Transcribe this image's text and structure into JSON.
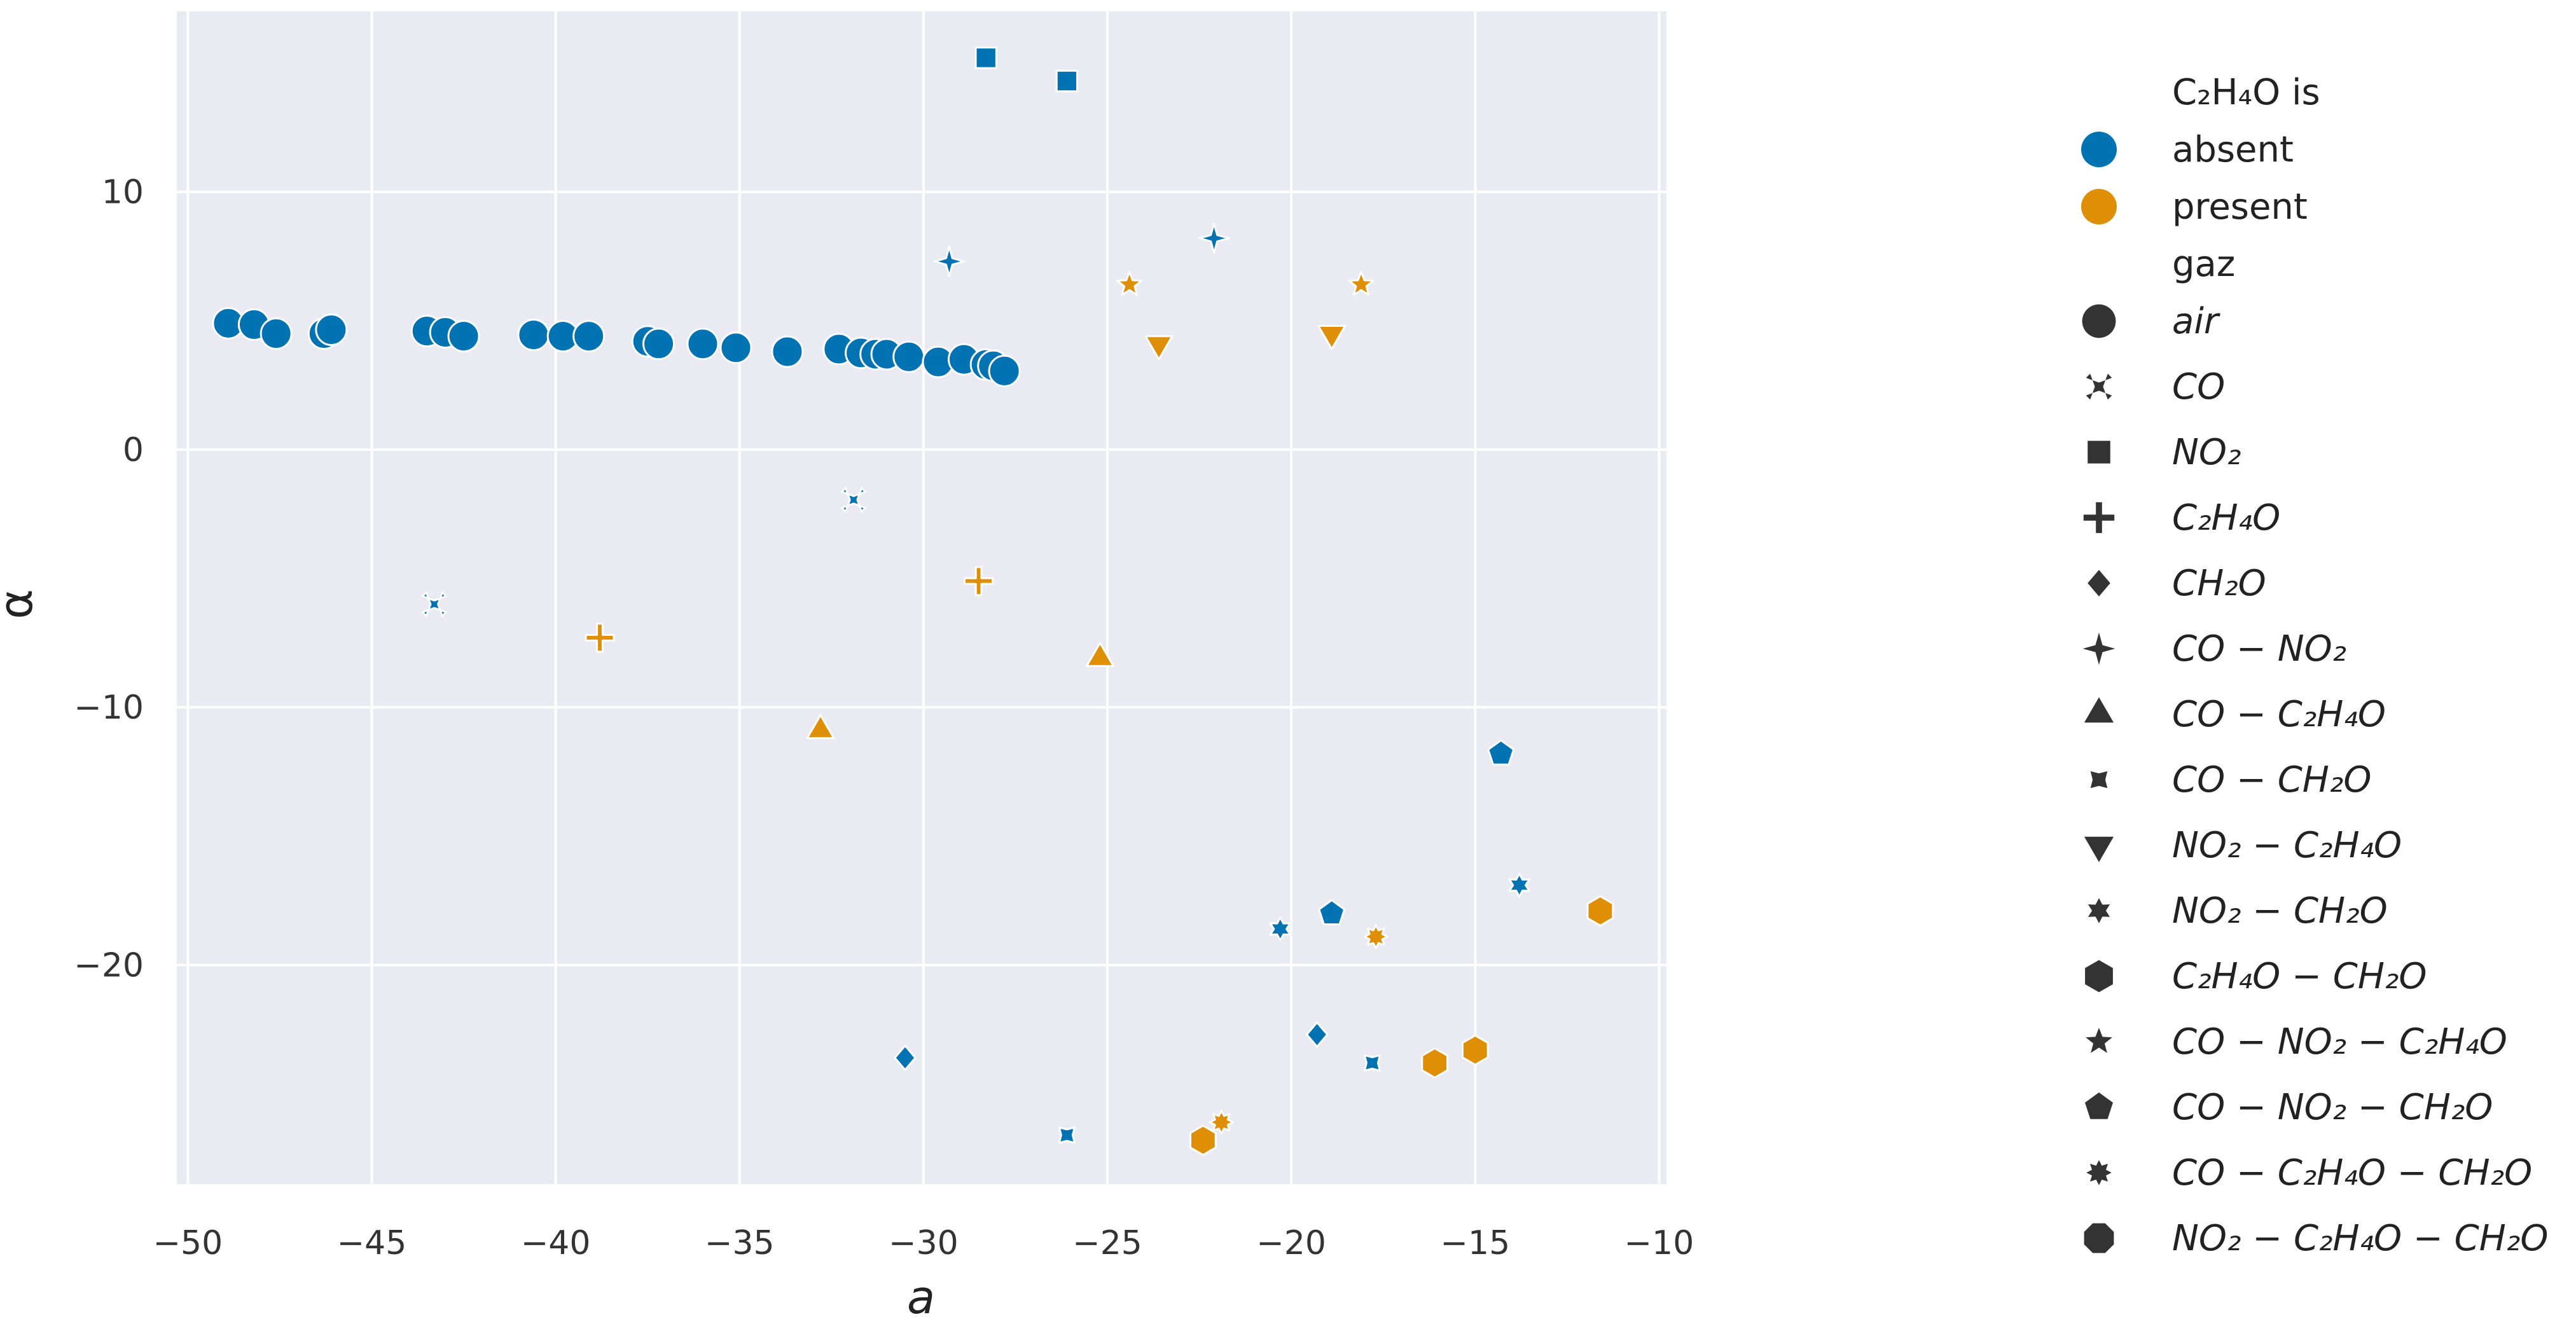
{
  "chart_data": {
    "type": "scatter",
    "xlabel": "a",
    "ylabel": "α",
    "xlim": [
      -50.3,
      -9.8
    ],
    "ylim": [
      -28.5,
      17.0
    ],
    "xticks": [
      -50,
      -45,
      -40,
      -35,
      -30,
      -25,
      -20,
      -15,
      -10
    ],
    "yticks": [
      -20,
      -10,
      0,
      10
    ],
    "xtick_labels": [
      "−50",
      "−45",
      "−40",
      "−35",
      "−30",
      "−25",
      "−20",
      "−15",
      "−10"
    ],
    "ytick_labels": [
      "−20",
      "−10",
      "0",
      "10"
    ],
    "grid": true,
    "legend_placement": "outside right",
    "colors": {
      "background": "#eaeaf2",
      "grid": "#ffffff",
      "absent": "#0173b2",
      "present": "#de8f05",
      "legend_marker": "#333333"
    },
    "legend": {
      "hue_title": "C₂H₄O is",
      "hue": [
        {
          "label": "absent",
          "value": "absent"
        },
        {
          "label": "present",
          "value": "present"
        }
      ],
      "style_title": "gaz",
      "styles": [
        {
          "label": "air",
          "marker": "circle"
        },
        {
          "label": "CO",
          "marker": "x"
        },
        {
          "label": "NO₂",
          "marker": "square"
        },
        {
          "label": "C₂H₄O",
          "marker": "plus"
        },
        {
          "label": "CH₂O",
          "marker": "diamond"
        },
        {
          "label": "CO − NO₂",
          "marker": "star4"
        },
        {
          "label": "CO − C₂H₄O",
          "marker": "triangle-up"
        },
        {
          "label": "CO − CH₂O",
          "marker": "star4-concave"
        },
        {
          "label": "NO₂ − C₂H₄O",
          "marker": "triangle-down"
        },
        {
          "label": "NO₂ − CH₂O",
          "marker": "star6"
        },
        {
          "label": "C₂H₄O − CH₂O",
          "marker": "hexagon"
        },
        {
          "label": "CO − NO₂ − C₂H₄O",
          "marker": "star5"
        },
        {
          "label": "CO − NO₂ − CH₂O",
          "marker": "pentagon"
        },
        {
          "label": "CO − C₂H₄O − CH₂O",
          "marker": "star8"
        },
        {
          "label": "NO₂ − C₂H₄O − CH₂O",
          "marker": "octagon"
        }
      ]
    },
    "points": [
      {
        "x": -48.9,
        "y": 4.9,
        "hue": "absent",
        "gaz": "air"
      },
      {
        "x": -48.2,
        "y": 4.85,
        "hue": "absent",
        "gaz": "air"
      },
      {
        "x": -47.6,
        "y": 4.5,
        "hue": "absent",
        "gaz": "air"
      },
      {
        "x": -46.3,
        "y": 4.5,
        "hue": "absent",
        "gaz": "air"
      },
      {
        "x": -46.1,
        "y": 4.65,
        "hue": "absent",
        "gaz": "air"
      },
      {
        "x": -43.5,
        "y": 4.6,
        "hue": "absent",
        "gaz": "air"
      },
      {
        "x": -43.0,
        "y": 4.55,
        "hue": "absent",
        "gaz": "air"
      },
      {
        "x": -42.5,
        "y": 4.4,
        "hue": "absent",
        "gaz": "air"
      },
      {
        "x": -40.6,
        "y": 4.45,
        "hue": "absent",
        "gaz": "air"
      },
      {
        "x": -39.8,
        "y": 4.4,
        "hue": "absent",
        "gaz": "air"
      },
      {
        "x": -39.1,
        "y": 4.4,
        "hue": "absent",
        "gaz": "air"
      },
      {
        "x": -37.5,
        "y": 4.2,
        "hue": "absent",
        "gaz": "air"
      },
      {
        "x": -37.2,
        "y": 4.1,
        "hue": "absent",
        "gaz": "air"
      },
      {
        "x": -36.0,
        "y": 4.1,
        "hue": "absent",
        "gaz": "air"
      },
      {
        "x": -35.1,
        "y": 3.95,
        "hue": "absent",
        "gaz": "air"
      },
      {
        "x": -33.7,
        "y": 3.8,
        "hue": "absent",
        "gaz": "air"
      },
      {
        "x": -32.3,
        "y": 3.9,
        "hue": "absent",
        "gaz": "air"
      },
      {
        "x": -31.7,
        "y": 3.75,
        "hue": "absent",
        "gaz": "air"
      },
      {
        "x": -31.3,
        "y": 3.7,
        "hue": "absent",
        "gaz": "air"
      },
      {
        "x": -31.0,
        "y": 3.7,
        "hue": "absent",
        "gaz": "air"
      },
      {
        "x": -30.4,
        "y": 3.6,
        "hue": "absent",
        "gaz": "air"
      },
      {
        "x": -29.6,
        "y": 3.4,
        "hue": "absent",
        "gaz": "air"
      },
      {
        "x": -28.9,
        "y": 3.5,
        "hue": "absent",
        "gaz": "air"
      },
      {
        "x": -28.3,
        "y": 3.3,
        "hue": "absent",
        "gaz": "air"
      },
      {
        "x": -28.1,
        "y": 3.25,
        "hue": "absent",
        "gaz": "air"
      },
      {
        "x": -27.8,
        "y": 3.05,
        "hue": "absent",
        "gaz": "air"
      },
      {
        "x": -43.3,
        "y": -6.0,
        "hue": "absent",
        "gaz": "CO"
      },
      {
        "x": -31.9,
        "y": -1.95,
        "hue": "absent",
        "gaz": "CO"
      },
      {
        "x": -28.3,
        "y": 15.2,
        "hue": "absent",
        "gaz": "NO₂"
      },
      {
        "x": -26.1,
        "y": 14.3,
        "hue": "absent",
        "gaz": "NO₂"
      },
      {
        "x": -38.8,
        "y": -7.3,
        "hue": "present",
        "gaz": "C₂H₄O"
      },
      {
        "x": -28.5,
        "y": -5.1,
        "hue": "present",
        "gaz": "C₂H₄O"
      },
      {
        "x": -30.5,
        "y": -23.6,
        "hue": "absent",
        "gaz": "CH₂O"
      },
      {
        "x": -19.3,
        "y": -22.7,
        "hue": "absent",
        "gaz": "CH₂O"
      },
      {
        "x": -29.3,
        "y": 7.3,
        "hue": "absent",
        "gaz": "CO − NO₂"
      },
      {
        "x": -22.1,
        "y": 8.2,
        "hue": "absent",
        "gaz": "CO − NO₂"
      },
      {
        "x": -32.8,
        "y": -10.9,
        "hue": "present",
        "gaz": "CO − C₂H₄O"
      },
      {
        "x": -25.2,
        "y": -8.1,
        "hue": "present",
        "gaz": "CO − C₂H₄O"
      },
      {
        "x": -26.1,
        "y": -26.6,
        "hue": "absent",
        "gaz": "CO − CH₂O"
      },
      {
        "x": -17.8,
        "y": -23.8,
        "hue": "absent",
        "gaz": "CO − CH₂O"
      },
      {
        "x": -23.6,
        "y": 4.1,
        "hue": "present",
        "gaz": "NO₂ − C₂H₄O"
      },
      {
        "x": -18.9,
        "y": 4.5,
        "hue": "present",
        "gaz": "NO₂ − C₂H₄O"
      },
      {
        "x": -20.3,
        "y": -18.6,
        "hue": "absent",
        "gaz": "NO₂ − CH₂O"
      },
      {
        "x": -13.8,
        "y": -16.9,
        "hue": "absent",
        "gaz": "NO₂ − CH₂O"
      },
      {
        "x": -22.4,
        "y": -26.8,
        "hue": "present",
        "gaz": "C₂H₄O − CH₂O"
      },
      {
        "x": -15.0,
        "y": -23.3,
        "hue": "present",
        "gaz": "C₂H₄O − CH₂O"
      },
      {
        "x": -16.1,
        "y": -23.8,
        "hue": "present",
        "gaz": "C₂H₄O − CH₂O"
      },
      {
        "x": -11.6,
        "y": -17.9,
        "hue": "present",
        "gaz": "C₂H₄O − CH₂O"
      },
      {
        "x": -24.4,
        "y": 6.4,
        "hue": "present",
        "gaz": "CO − NO₂ − C₂H₄O"
      },
      {
        "x": -18.1,
        "y": 6.4,
        "hue": "present",
        "gaz": "CO − NO₂ − C₂H₄O"
      },
      {
        "x": -14.3,
        "y": -11.8,
        "hue": "absent",
        "gaz": "CO − NO₂ − CH₂O"
      },
      {
        "x": -18.9,
        "y": -18.0,
        "hue": "absent",
        "gaz": "CO − NO₂ − CH₂O"
      },
      {
        "x": -21.9,
        "y": -26.1,
        "hue": "present",
        "gaz": "CO − C₂H₄O − CH₂O"
      },
      {
        "x": -17.7,
        "y": -18.9,
        "hue": "present",
        "gaz": "CO − C₂H₄O − CH₂O"
      }
    ]
  }
}
